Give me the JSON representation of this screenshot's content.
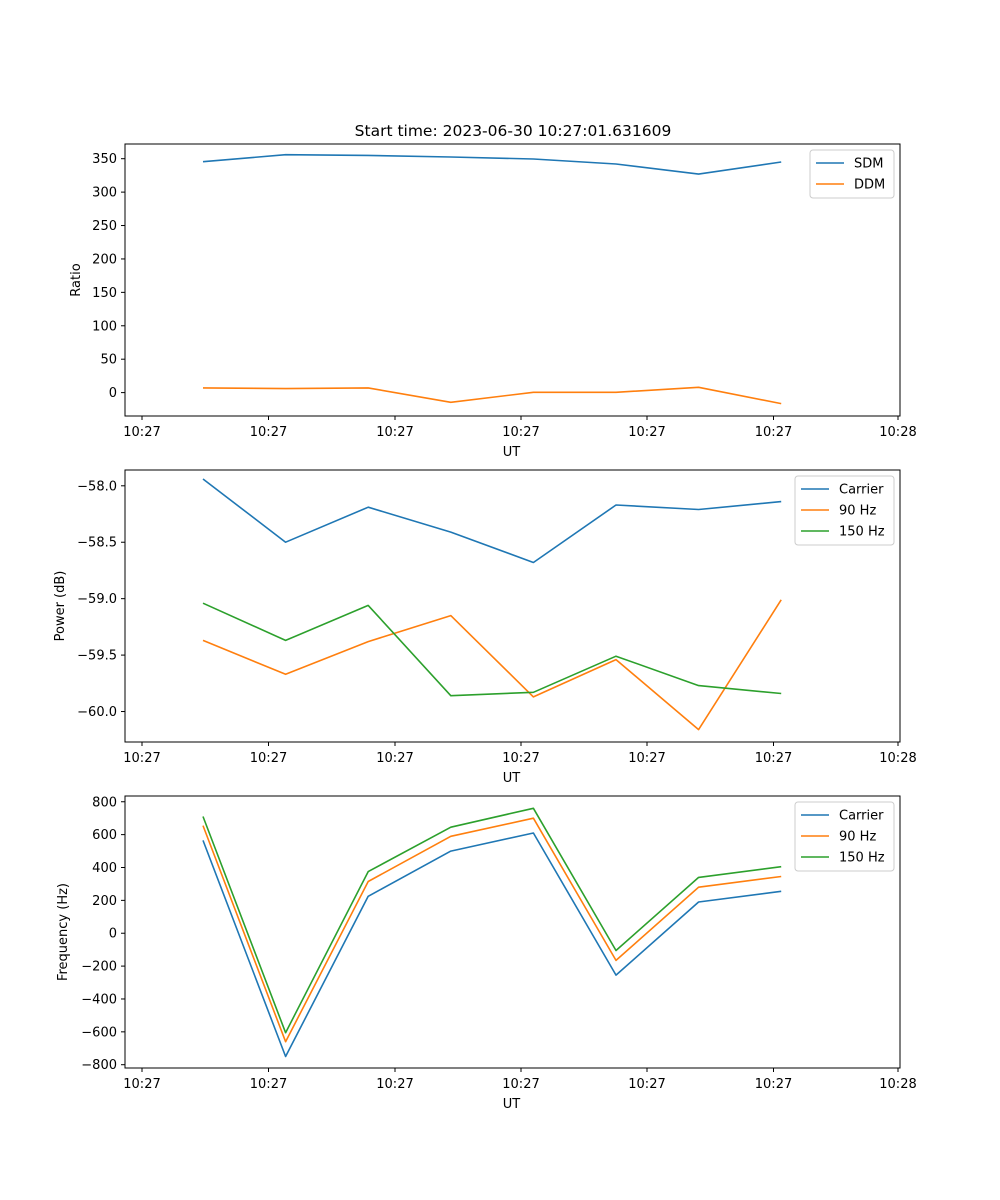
{
  "figure": {
    "title": "Start time: 2023-06-30 10:27:01.631609"
  },
  "chart_data": [
    {
      "type": "line",
      "title": "Start time: 2023-06-30 10:27:01.631609",
      "xlabel": "UT",
      "ylabel": "Ratio",
      "x_tick_labels": [
        "10:27",
        "10:27",
        "10:27",
        "10:27",
        "10:27",
        "10:27",
        "10:28"
      ],
      "y_ticks": [
        0,
        50,
        100,
        150,
        200,
        250,
        300,
        350
      ],
      "ylim": [
        -35,
        372
      ],
      "x_index": [
        0,
        1,
        2,
        3,
        4,
        5,
        6,
        7
      ],
      "series": [
        {
          "name": "SDM",
          "color": "#1f77b4",
          "values": [
            345.5,
            356,
            355,
            352.5,
            349.5,
            342,
            327,
            345
          ]
        },
        {
          "name": "DDM",
          "color": "#ff7f0e",
          "values": [
            7,
            6,
            7,
            -14.5,
            0.5,
            0.5,
            8,
            -16.5
          ]
        }
      ],
      "legend": "top-right",
      "grid": false
    },
    {
      "type": "line",
      "title": "",
      "xlabel": "UT",
      "ylabel": "Power (dB)",
      "x_tick_labels": [
        "10:27",
        "10:27",
        "10:27",
        "10:27",
        "10:27",
        "10:27",
        "10:28"
      ],
      "y_ticks": [
        -60.0,
        -59.5,
        -59.0,
        -58.5,
        -58.0
      ],
      "y_tick_labels": [
        "−60.0",
        "−59.5",
        "−59.0",
        "−58.5",
        "−58.0"
      ],
      "ylim": [
        -60.27,
        -57.86
      ],
      "x_index": [
        0,
        1,
        2,
        3,
        4,
        5,
        6,
        7
      ],
      "series": [
        {
          "name": "Carrier",
          "color": "#1f77b4",
          "values": [
            -57.94,
            -58.5,
            -58.19,
            -58.41,
            -58.68,
            -58.17,
            -58.21,
            -58.14
          ]
        },
        {
          "name": "90 Hz",
          "color": "#ff7f0e",
          "values": [
            -59.37,
            -59.67,
            -59.38,
            -59.15,
            -59.87,
            -59.54,
            -60.16,
            -59.01
          ]
        },
        {
          "name": "150 Hz",
          "color": "#2ca02c",
          "values": [
            -59.04,
            -59.37,
            -59.06,
            -59.86,
            -59.83,
            -59.51,
            -59.77,
            -59.84
          ]
        }
      ],
      "legend": "top-right",
      "grid": false
    },
    {
      "type": "line",
      "title": "",
      "xlabel": "UT",
      "ylabel": "Frequency (Hz)",
      "x_tick_labels": [
        "10:27",
        "10:27",
        "10:27",
        "10:27",
        "10:27",
        "10:27",
        "10:28"
      ],
      "y_ticks": [
        -800,
        -600,
        -400,
        -200,
        0,
        200,
        400,
        600,
        800
      ],
      "y_tick_labels": [
        "−800",
        "−600",
        "−400",
        "−200",
        "0",
        "200",
        "400",
        "600",
        "800"
      ],
      "ylim": [
        -820,
        835
      ],
      "x_index": [
        0,
        1,
        2,
        3,
        4,
        5,
        6,
        7
      ],
      "series": [
        {
          "name": "Carrier",
          "color": "#1f77b4",
          "values": [
            565,
            -750,
            225,
            500,
            610,
            -255,
            190,
            255
          ]
        },
        {
          "name": "90 Hz",
          "color": "#ff7f0e",
          "values": [
            655,
            -660,
            315,
            590,
            700,
            -165,
            280,
            345
          ]
        },
        {
          "name": "150 Hz",
          "color": "#2ca02c",
          "values": [
            710,
            -605,
            375,
            645,
            760,
            -105,
            340,
            405
          ]
        }
      ],
      "legend": "top-right",
      "grid": false
    }
  ]
}
